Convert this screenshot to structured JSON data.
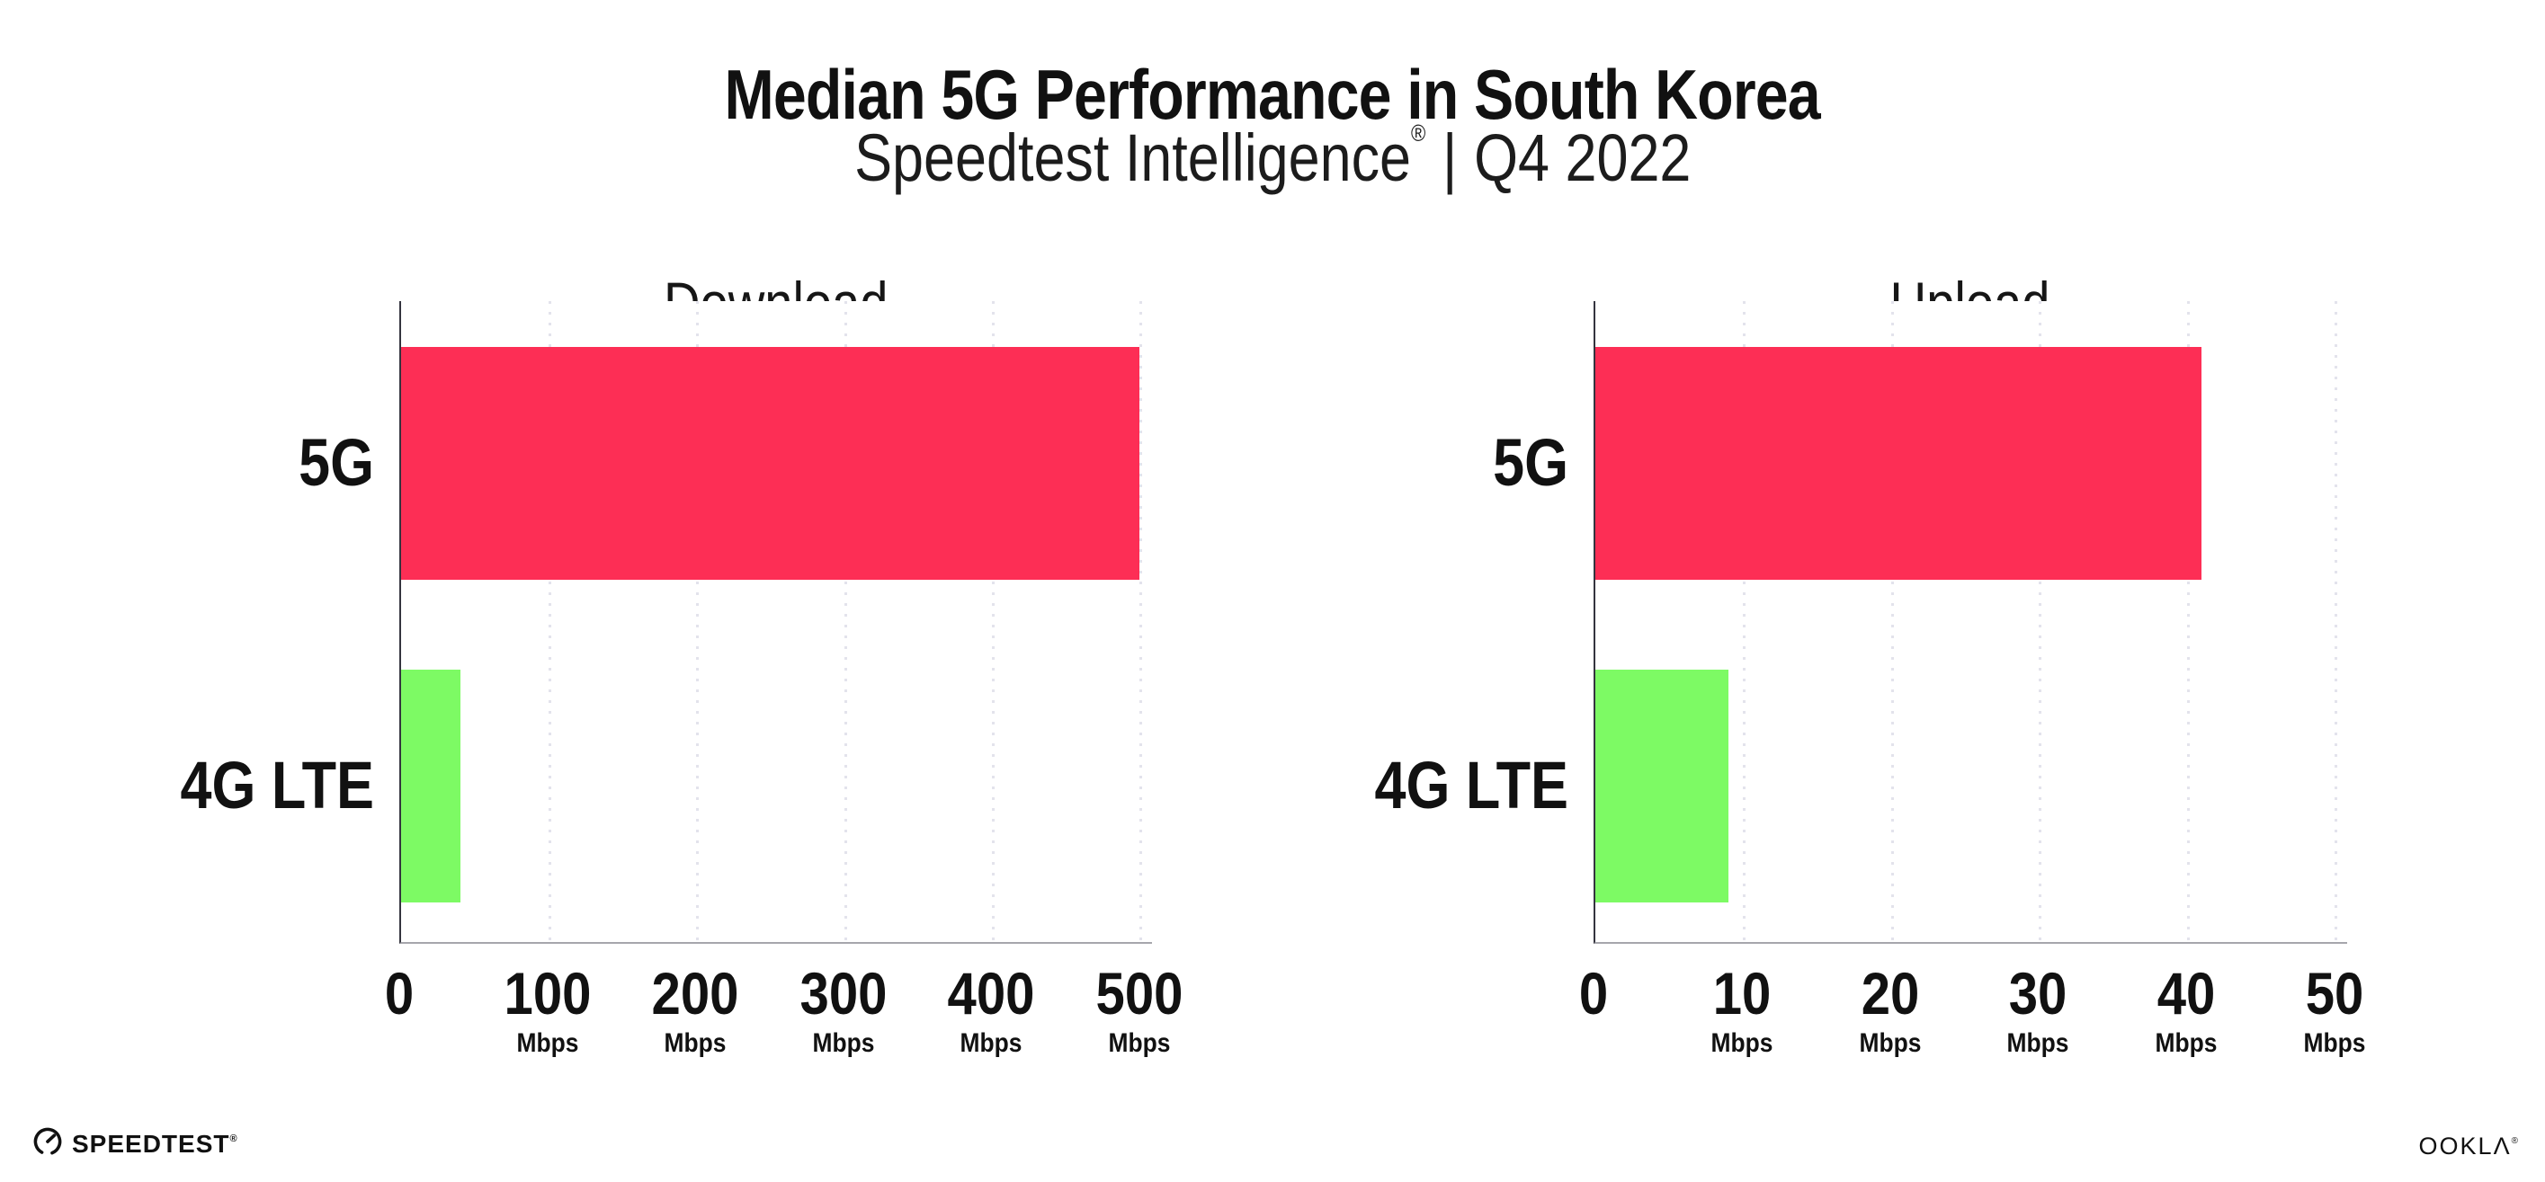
{
  "header": {
    "title": "Median 5G Performance in South Korea",
    "subtitle_brand": "Speedtest Intelligence",
    "subtitle_reg": "®",
    "subtitle_divider": "|",
    "subtitle_period": "Q4 2022"
  },
  "chart_data": [
    {
      "type": "bar",
      "orientation": "horizontal",
      "title": "Download",
      "categories": [
        "5G",
        "4G LTE"
      ],
      "values": [
        500,
        40
      ],
      "unit": "Mbps",
      "xlim": [
        0,
        500
      ],
      "xticks": [
        0,
        100,
        200,
        300,
        400,
        500
      ],
      "series_colors": [
        "#FD2E55",
        "#7DFA64"
      ],
      "grid": "vertical dotted gridlines at labeled ticks",
      "legend": "none"
    },
    {
      "type": "bar",
      "orientation": "horizontal",
      "title": "Upload",
      "categories": [
        "5G",
        "4G LTE"
      ],
      "values": [
        41,
        9
      ],
      "unit": "Mbps",
      "xlim": [
        0,
        50
      ],
      "xticks": [
        0,
        10,
        20,
        30,
        40,
        50
      ],
      "series_colors": [
        "#FD2E55",
        "#7DFA64"
      ],
      "grid": "vertical dotted gridlines at labeled ticks",
      "legend": "none"
    }
  ],
  "colors": {
    "bar_5g": "#FD2E55",
    "bar_4g_lte": "#7DFA64",
    "gridline": "#E3E3EC",
    "y_axis_line": "#34343F",
    "x_axis_line": "#A6A6AC",
    "text": "#111111",
    "background": "#FFFFFF"
  },
  "footer": {
    "speedtest_logo_text": "SPEEDTEST",
    "speedtest_mark": "®",
    "ookla_logo_text": "OOKLΛ",
    "ookla_mark": "®"
  }
}
